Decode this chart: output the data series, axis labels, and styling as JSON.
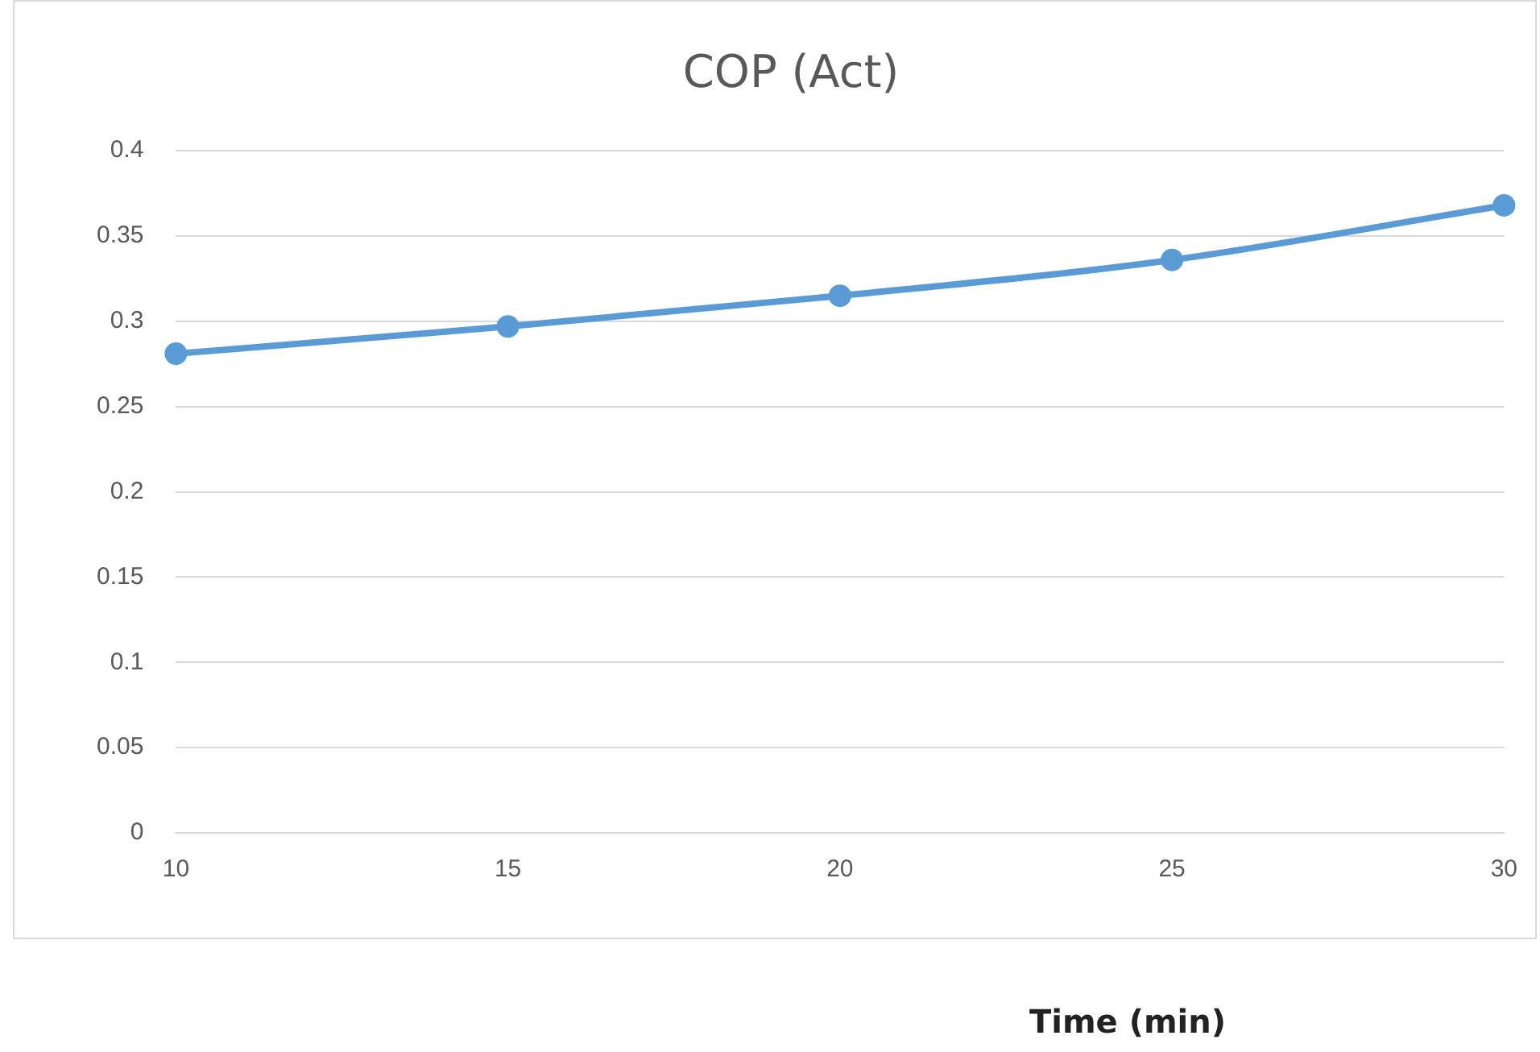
{
  "chart_data": {
    "type": "line",
    "title": "COP (Act)",
    "xlabel": "Time (min)",
    "categories": [
      "10",
      "15",
      "20",
      "25",
      "30"
    ],
    "series": [
      {
        "color": "#5b9bd5",
        "values": [
          0.281,
          0.297,
          0.315,
          0.336,
          0.368
        ]
      }
    ],
    "ylim": [
      0,
      0.4
    ],
    "yticks": [
      0,
      0.05,
      0.1,
      0.15,
      0.2,
      0.25,
      0.3,
      0.35,
      0.4
    ],
    "grid": "y",
    "legend": false,
    "marker": "circle",
    "line_style": "solid"
  }
}
